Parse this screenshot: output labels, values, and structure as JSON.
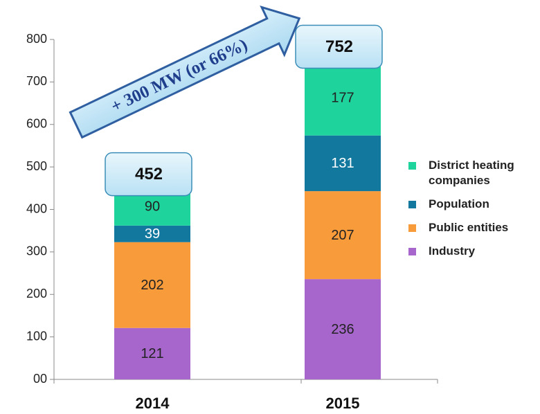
{
  "chart_data": {
    "type": "stacked_bar",
    "annotation": "+ 300 MW (or 66%)",
    "categories": [
      "2014",
      "2015"
    ],
    "series": [
      {
        "name": "Industry",
        "color": "#a666cc",
        "values": [
          121,
          236
        ]
      },
      {
        "name": "Public entities",
        "color": "#f89b3a",
        "values": [
          202,
          207
        ]
      },
      {
        "name": "Population",
        "color": "#13789e",
        "values": [
          39,
          131
        ]
      },
      {
        "name": "District heating companies",
        "color": "#1ed39c",
        "values": [
          90,
          177
        ]
      }
    ],
    "totals": [
      452,
      752
    ],
    "ylim": [
      0,
      800
    ],
    "yticks": [
      {
        "value": 0,
        "label": "00"
      },
      100,
      200,
      300,
      400,
      500,
      600,
      700,
      800
    ],
    "legend": "right"
  }
}
